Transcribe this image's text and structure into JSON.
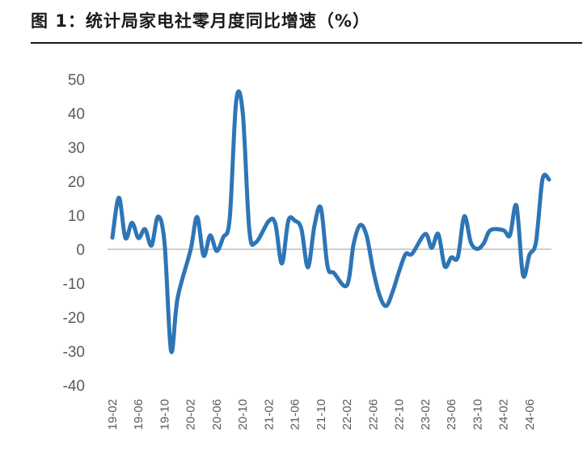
{
  "chart_data": {
    "type": "line",
    "title": "图 1：统计局家电社零月度同比增速（%）",
    "xlabel": "",
    "ylabel": "",
    "ylim": [
      -40,
      50
    ],
    "yticks": [
      50,
      40,
      30,
      20,
      10,
      0,
      -10,
      -20,
      -30,
      -40
    ],
    "xticks": [
      "19-02",
      "19-06",
      "19-10",
      "20-02",
      "20-06",
      "20-10",
      "21-02",
      "21-06",
      "21-10",
      "22-02",
      "22-06",
      "22-10",
      "23-02",
      "23-06",
      "23-10",
      "24-02",
      "24-06"
    ],
    "grid": false,
    "legend": "none",
    "line_color": "#2E75B6",
    "axis_color": "#bfbfbf",
    "series": [
      {
        "x": [
          "19-02",
          "19-03",
          "19-04",
          "19-05",
          "19-06",
          "19-07",
          "19-08",
          "19-09",
          "19-10",
          "19-11",
          "19-12",
          "20-02",
          "20-03",
          "20-04",
          "20-05",
          "20-06",
          "20-07",
          "20-08",
          "20-09",
          "20-10",
          "20-11",
          "20-12",
          "21-02",
          "21-03",
          "21-04",
          "21-05",
          "21-06",
          "21-07",
          "21-08",
          "21-09",
          "21-10",
          "21-11",
          "21-12",
          "22-02",
          "22-03",
          "22-04",
          "22-05",
          "22-06",
          "22-07",
          "22-08",
          "22-09",
          "22-10",
          "22-11",
          "22-12",
          "23-02",
          "23-03",
          "23-04",
          "23-05",
          "23-06",
          "23-07",
          "23-08",
          "23-09",
          "23-10",
          "23-11",
          "23-12",
          "24-02",
          "24-03",
          "24-04",
          "24-05",
          "24-06",
          "24-07",
          "24-08",
          "24-09"
        ],
        "values": [
          3.4,
          15.2,
          3.3,
          7.8,
          3.3,
          5.9,
          1.1,
          9.6,
          1.8,
          -29.9,
          -14.4,
          -0.2,
          9.5,
          -1.9,
          4.1,
          -0.5,
          3.5,
          9.1,
          43.6,
          40.2,
          5.8,
          2.0,
          8.3,
          7.5,
          -4.2,
          8.4,
          8.4,
          6.0,
          -5.3,
          6.9,
          12.1,
          -4.9,
          -7.0,
          -10.6,
          1.4,
          7.1,
          4.1,
          -6.0,
          -13.6,
          -16.7,
          -12.5,
          -6.5,
          -1.4,
          -1.3,
          4.5,
          0.4,
          4.5,
          -5.0,
          -2.4,
          -2.3,
          9.7,
          2.0,
          0.1,
          1.8,
          5.6,
          5.6,
          4.1,
          12.8,
          -7.6,
          -1.6,
          2.2,
          20.6,
          20.5
        ]
      }
    ]
  }
}
